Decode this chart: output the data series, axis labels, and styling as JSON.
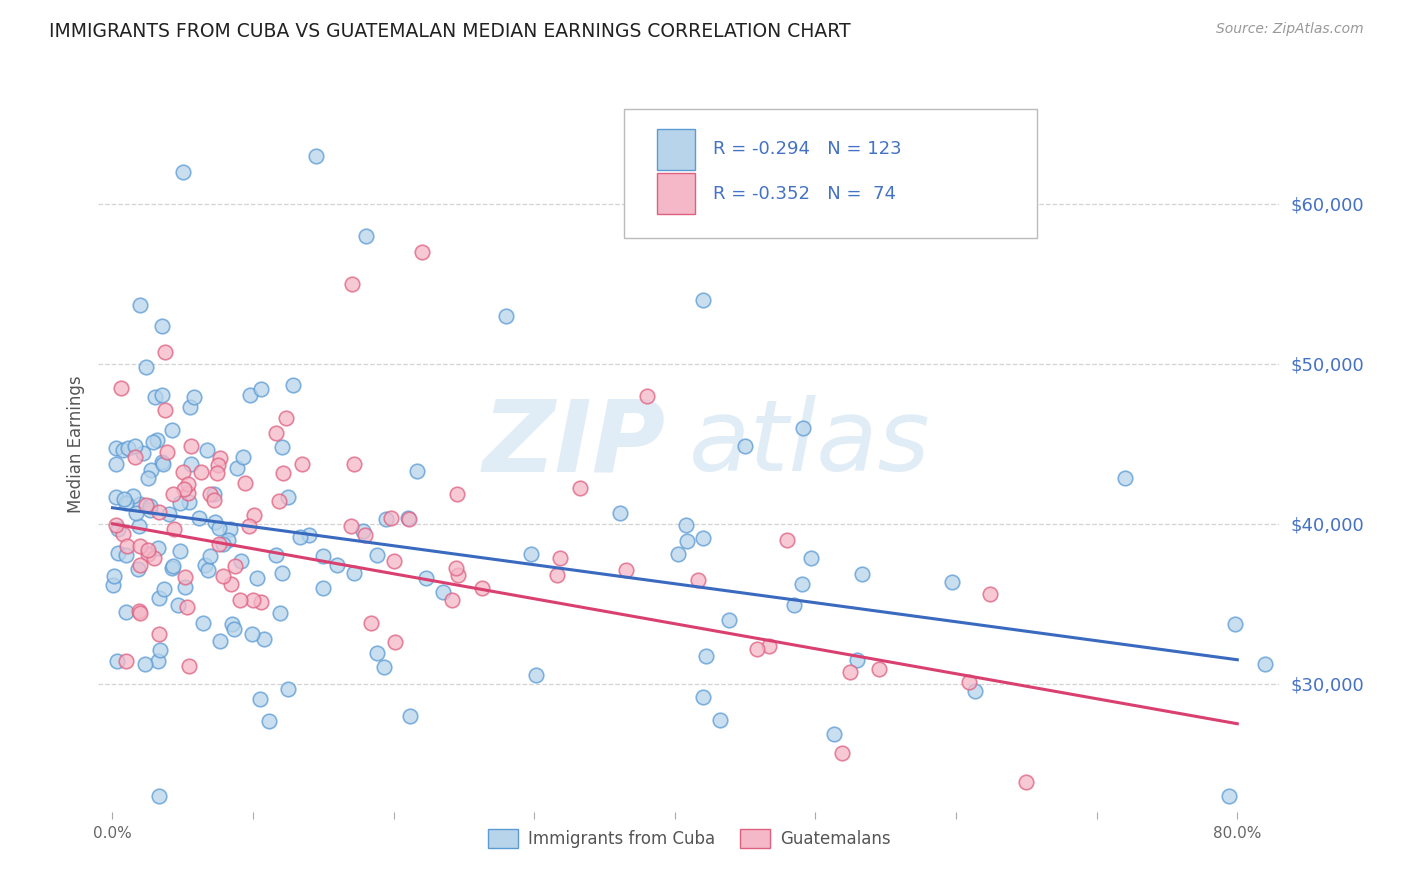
{
  "title": "IMMIGRANTS FROM CUBA VS GUATEMALAN MEDIAN EARNINGS CORRELATION CHART",
  "source": "Source: ZipAtlas.com",
  "ylabel": "Median Earnings",
  "legend_entries": [
    {
      "label": "Immigrants from Cuba",
      "R": "-0.294",
      "N": "123"
    },
    {
      "label": "Guatemalans",
      "R": "-0.352",
      "N": " 74"
    }
  ],
  "blue_edge": "#5b9bd5",
  "blue_fill": "#b8d4ea",
  "pink_edge": "#e06080",
  "pink_fill": "#f4b8c8",
  "trend_blue": "#3a6abf",
  "trend_pink": "#d94070",
  "watermark_color": "#cce0f0",
  "background": "#ffffff",
  "grid_color": "#c8c8c8",
  "right_label_color": "#4472c4",
  "title_color": "#222222",
  "legend_text_color": "#4472c4",
  "axis_label_color": "#555555",
  "tick_label_color": "#666666",
  "ylim_low": 22000,
  "ylim_high": 68000,
  "xlim_low": -0.01,
  "xlim_high": 0.83,
  "yticks": [
    30000,
    40000,
    50000,
    60000
  ],
  "ytick_labels_right": [
    "$30,000",
    "$40,000",
    "$50,000",
    "$60,000"
  ],
  "xtick_positions": [
    0.0,
    0.1,
    0.2,
    0.3,
    0.4,
    0.5,
    0.6,
    0.7,
    0.8
  ],
  "xtick_labels": [
    "0.0%",
    "",
    "",
    "",
    "",
    "",
    "",
    "",
    "80.0%"
  ],
  "trend_blue_at0": 41000,
  "trend_blue_at80": 31500,
  "trend_pink_at0": 40000,
  "trend_pink_at80": 27500
}
